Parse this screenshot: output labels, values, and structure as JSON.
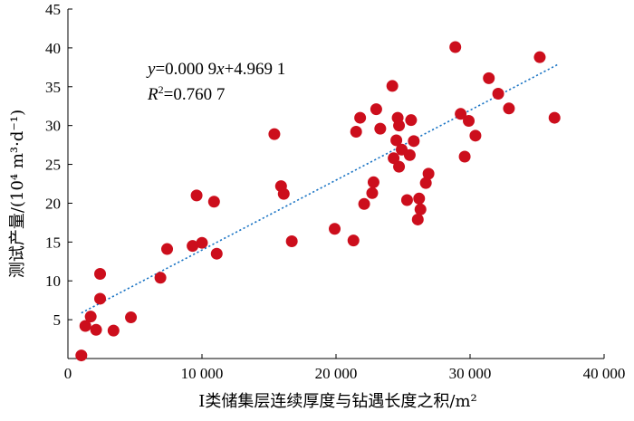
{
  "chart_data": {
    "type": "scatter",
    "xlabel": "Ⅰ类储集层连续厚度与钻遇长度之积/m²",
    "ylabel": "测试产量/(10⁴ m³·d⁻¹)",
    "xlim": [
      0,
      40000
    ],
    "ylim": [
      0,
      45
    ],
    "x_ticks": [
      0,
      10000,
      20000,
      30000,
      40000
    ],
    "x_tick_labels": [
      "0",
      "10 000",
      "20 000",
      "30 000",
      "40 000"
    ],
    "y_ticks": [
      5,
      10,
      15,
      20,
      25,
      30,
      35,
      40,
      45
    ],
    "y_tick_labels": [
      "5",
      "10",
      "15",
      "20",
      "25",
      "30",
      "35",
      "40",
      "45"
    ],
    "grid": false,
    "point_color": "#cc0e1c",
    "trendline": {
      "type": "linear",
      "slope": 0.0009,
      "intercept": 4.9691,
      "x_range": [
        1000,
        36500
      ],
      "color": "#1a74c4",
      "style": "dotted"
    },
    "annotation": {
      "equation": {
        "y": "y",
        "rhs": "=0.000 9",
        "x": "x",
        "tail": "+4.969 1"
      },
      "r2": {
        "r": "R",
        "sup": "2",
        "value": "=0.760 7"
      }
    },
    "points": [
      {
        "x": 1000,
        "y": 0.4
      },
      {
        "x": 1300,
        "y": 4.2
      },
      {
        "x": 1700,
        "y": 5.4
      },
      {
        "x": 2100,
        "y": 3.7
      },
      {
        "x": 2400,
        "y": 7.7
      },
      {
        "x": 2400,
        "y": 10.9
      },
      {
        "x": 3400,
        "y": 3.6
      },
      {
        "x": 4700,
        "y": 5.3
      },
      {
        "x": 6900,
        "y": 10.4
      },
      {
        "x": 7400,
        "y": 14.1
      },
      {
        "x": 9300,
        "y": 14.5
      },
      {
        "x": 9600,
        "y": 21.0
      },
      {
        "x": 10000,
        "y": 14.9
      },
      {
        "x": 10900,
        "y": 20.2
      },
      {
        "x": 11100,
        "y": 13.5
      },
      {
        "x": 15400,
        "y": 28.9
      },
      {
        "x": 15900,
        "y": 22.2
      },
      {
        "x": 16100,
        "y": 21.2
      },
      {
        "x": 16700,
        "y": 15.1
      },
      {
        "x": 19900,
        "y": 16.7
      },
      {
        "x": 21300,
        "y": 15.2
      },
      {
        "x": 21500,
        "y": 29.2
      },
      {
        "x": 21800,
        "y": 31.0
      },
      {
        "x": 22100,
        "y": 19.9
      },
      {
        "x": 22700,
        "y": 21.3
      },
      {
        "x": 22800,
        "y": 22.7
      },
      {
        "x": 23000,
        "y": 32.1
      },
      {
        "x": 23300,
        "y": 29.6
      },
      {
        "x": 24200,
        "y": 35.1
      },
      {
        "x": 24300,
        "y": 25.8
      },
      {
        "x": 24500,
        "y": 28.1
      },
      {
        "x": 24600,
        "y": 31.0
      },
      {
        "x": 24700,
        "y": 30.0
      },
      {
        "x": 24700,
        "y": 24.7
      },
      {
        "x": 24900,
        "y": 26.9
      },
      {
        "x": 25300,
        "y": 20.4
      },
      {
        "x": 25500,
        "y": 26.2
      },
      {
        "x": 25600,
        "y": 30.7
      },
      {
        "x": 25800,
        "y": 28.0
      },
      {
        "x": 26100,
        "y": 17.9
      },
      {
        "x": 26200,
        "y": 20.6
      },
      {
        "x": 26300,
        "y": 19.2
      },
      {
        "x": 26700,
        "y": 22.6
      },
      {
        "x": 26900,
        "y": 23.8
      },
      {
        "x": 28900,
        "y": 40.1
      },
      {
        "x": 29300,
        "y": 31.5
      },
      {
        "x": 29600,
        "y": 26.0
      },
      {
        "x": 29900,
        "y": 30.6
      },
      {
        "x": 30400,
        "y": 28.7
      },
      {
        "x": 31400,
        "y": 36.1
      },
      {
        "x": 32100,
        "y": 34.1
      },
      {
        "x": 32900,
        "y": 32.2
      },
      {
        "x": 35200,
        "y": 38.8
      },
      {
        "x": 36300,
        "y": 31.0
      }
    ]
  }
}
